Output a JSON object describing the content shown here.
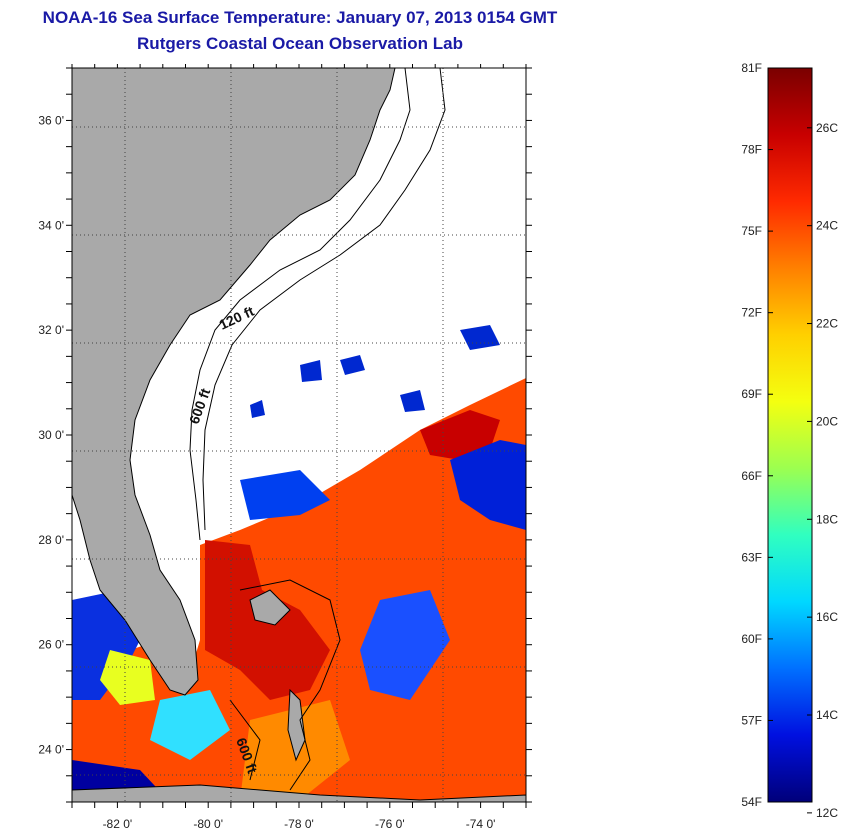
{
  "header": {
    "title": "NOAA-16 Sea Surface Temperature:  January 07, 2013 0154 GMT",
    "subtitle": "Rutgers Coastal Ocean Observation Lab"
  },
  "map": {
    "lon_ticks": [
      "-82 0'",
      "-80 0'",
      "-78 0'",
      "-76 0'",
      "-74 0'"
    ],
    "lat_ticks": [
      "36 0'",
      "34 0'",
      "32 0'",
      "30 0'",
      "28 0'",
      "26 0'",
      "24 0'"
    ],
    "lon_range": [
      -83,
      -73
    ],
    "lat_range": [
      23,
      37
    ],
    "contour_labels": [
      "120 ft",
      "600 ft",
      "600 ft"
    ],
    "colors": {
      "land": "#a9a9a9",
      "cloud": "#ffffff",
      "frame": "#000000"
    }
  },
  "colorbar": {
    "f_labels": [
      "81F",
      "78F",
      "75F",
      "72F",
      "69F",
      "66F",
      "63F",
      "60F",
      "57F",
      "54F"
    ],
    "c_labels": [
      "26C",
      "24C",
      "22C",
      "20C",
      "18C",
      "16C",
      "14C",
      "12C"
    ],
    "stops": [
      "#7a0000",
      "#c80000",
      "#ff2a00",
      "#ff8000",
      "#ffd000",
      "#f4ff10",
      "#9cff50",
      "#30ffc0",
      "#00d8ff",
      "#0070ff",
      "#0010e0",
      "#00007a"
    ]
  }
}
